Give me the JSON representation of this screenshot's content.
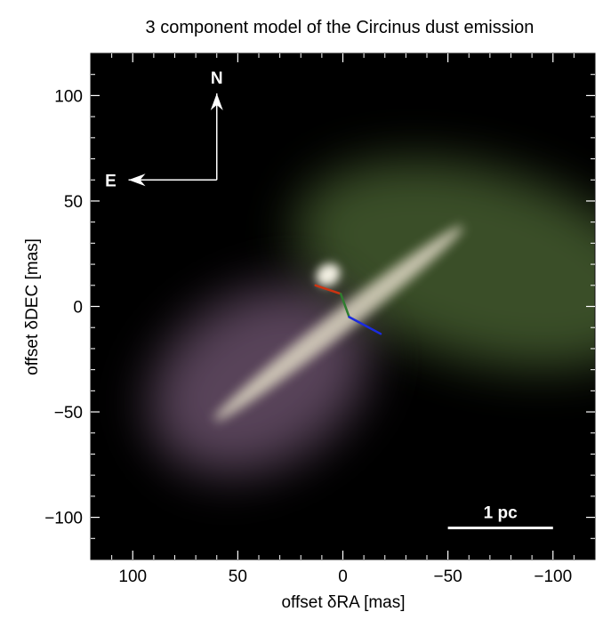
{
  "chart_data": {
    "type": "heatmap",
    "title": "3 component model of the Circinus dust emission",
    "xlabel": "offset δRA [mas]",
    "ylabel": "offset δDEC [mas]",
    "xlim": [
      120,
      -120
    ],
    "ylim": [
      -120,
      120
    ],
    "x_reversed": true,
    "grid": false,
    "x_ticks": [
      100,
      50,
      0,
      -50,
      -100
    ],
    "x_tick_labels": [
      "100",
      "50",
      "0",
      "−50",
      "−100"
    ],
    "y_ticks": [
      100,
      50,
      0,
      -50,
      -100
    ],
    "y_tick_labels": [
      "100",
      "50",
      "0",
      "−50",
      "−100"
    ],
    "background_color": "#000000",
    "components": [
      {
        "color": "#f2efe2",
        "shape": "compact bright core",
        "center": [
          7,
          15
        ],
        "fwhm": [
          12,
          10
        ],
        "pa_deg": -35
      },
      {
        "color": "#ddd6c2",
        "shape": "elongated disk",
        "center": [
          2,
          -8
        ],
        "fwhm": [
          150,
          11
        ],
        "pa_deg": -38
      },
      {
        "color": "#6b8f48",
        "shape": "extended cone (green, west)",
        "center": [
          -65,
          20
        ],
        "fwhm": [
          180,
          90
        ],
        "pa_deg": 15
      },
      {
        "color": "#a07aa3",
        "shape": "extended cone (magenta, east)",
        "center": [
          40,
          -35
        ],
        "fwhm": [
          110,
          80
        ],
        "pa_deg": -30
      }
    ],
    "series": [
      {
        "color": "#cc3311",
        "x": [
          13,
          1
        ],
        "y": [
          10,
          6
        ]
      },
      {
        "color": "#2f7d2f",
        "x": [
          1,
          -3
        ],
        "y": [
          6,
          -5
        ]
      },
      {
        "color": "#1a2be0",
        "x": [
          -3,
          -18
        ],
        "y": [
          -5,
          -13
        ]
      }
    ],
    "compass": {
      "origin": [
        60,
        60
      ],
      "north_end": [
        60,
        101
      ],
      "east_end": [
        102,
        60
      ],
      "north_label": "N",
      "east_label": "E",
      "color": "#ffffff"
    },
    "scale_bar": {
      "x": [
        -50,
        -100
      ],
      "y": -105,
      "label": "1 pc",
      "color": "#ffffff"
    }
  }
}
